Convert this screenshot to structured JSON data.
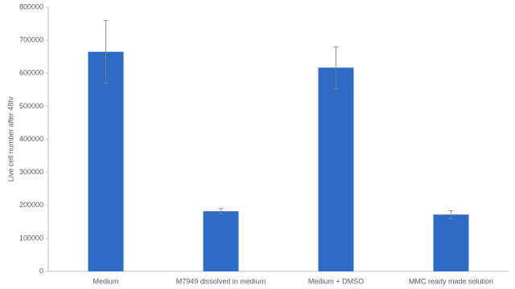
{
  "chart_data": {
    "type": "bar",
    "y_label": "Live cell number after 48hr",
    "categories": [
      "Medium",
      "M7949 dissolved in medium",
      "Medium + DMSO",
      "MMC ready made solution"
    ],
    "values": [
      665000,
      182000,
      617000,
      172000
    ],
    "errors": [
      95000,
      8000,
      63000,
      12000
    ],
    "color": "#2e6bc4",
    "ylim": [
      0,
      800000
    ],
    "yticks": [
      0,
      100000,
      200000,
      300000,
      400000,
      500000,
      600000,
      700000,
      800000
    ],
    "grid": false
  }
}
